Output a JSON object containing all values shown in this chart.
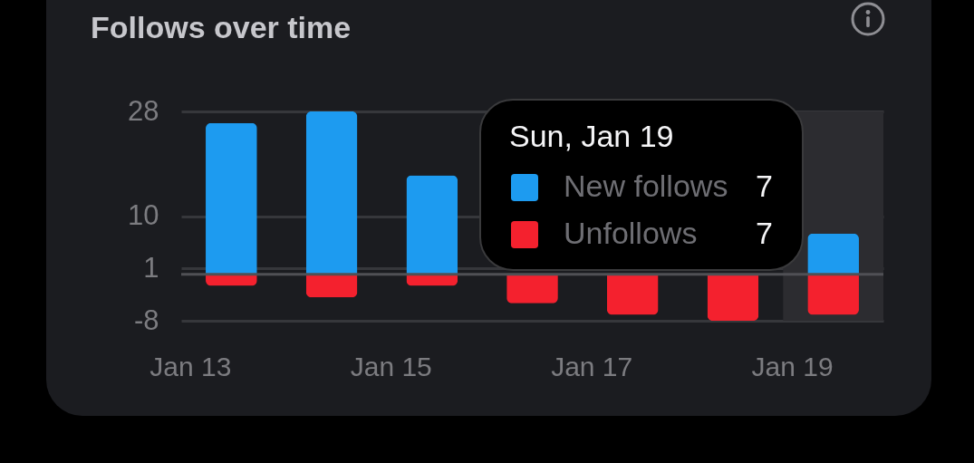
{
  "chart_data": {
    "type": "bar",
    "title": "Follows over time",
    "categories": [
      "Jan 13",
      null,
      "Jan 15",
      null,
      "Jan 17",
      null,
      "Jan 19"
    ],
    "series": [
      {
        "name": "New follows",
        "color": "#1d9bf0",
        "values": [
          26,
          28,
          17,
          null,
          null,
          null,
          7
        ]
      },
      {
        "name": "Unfollows",
        "color": "#f4212e",
        "values": [
          -2,
          -4,
          -2,
          -5,
          -7,
          -8,
          -7
        ]
      }
    ],
    "stacked": true,
    "ylim": [
      -8,
      28
    ],
    "yticks": [
      -8,
      1,
      10,
      28
    ],
    "grid": "y",
    "legend": "top right",
    "legend_title": "Sun, Jan 19",
    "annotations": [
      "7",
      "7"
    ],
    "ref_lines": [
      {
        "axis": "y",
        "value": 0,
        "color": "#505055"
      }
    ]
  }
}
